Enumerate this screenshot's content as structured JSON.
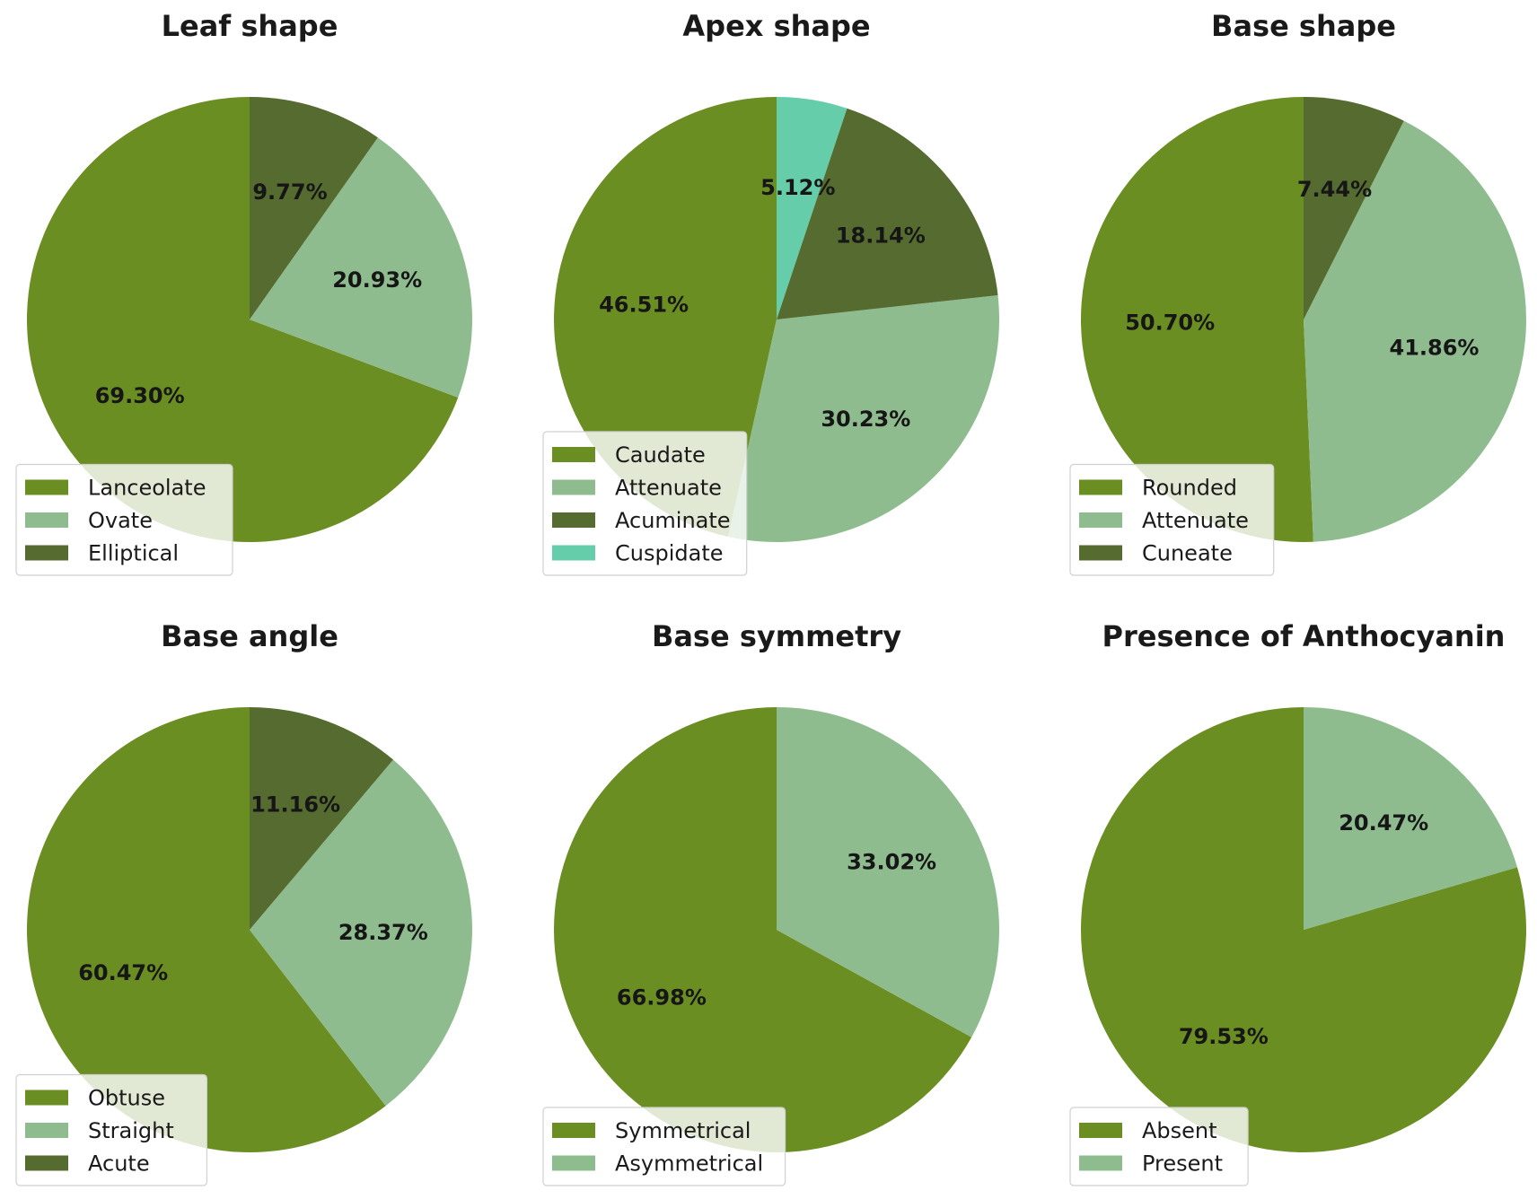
{
  "chart_data": [
    {
      "type": "pie",
      "title": "Leaf shape",
      "start_angle": "top",
      "direction": "counterclockwise",
      "legend_position": "lower-left",
      "slices": [
        {
          "label": "Lanceolate",
          "value": 69.3,
          "value_label": "69.30%",
          "color": "#6b8e23"
        },
        {
          "label": "Ovate",
          "value": 20.93,
          "value_label": "20.93%",
          "color": "#8fbc8f"
        },
        {
          "label": "Elliptical",
          "value": 9.77,
          "value_label": "9.77%",
          "color": "#556b2f"
        }
      ]
    },
    {
      "type": "pie",
      "title": "Apex shape",
      "start_angle": "top",
      "direction": "counterclockwise",
      "legend_position": "lower-left",
      "slices": [
        {
          "label": "Caudate",
          "value": 46.51,
          "value_label": "46.51%",
          "color": "#6b8e23"
        },
        {
          "label": "Attenuate",
          "value": 30.23,
          "value_label": "30.23%",
          "color": "#8fbc8f"
        },
        {
          "label": "Acuminate",
          "value": 18.14,
          "value_label": "18.14%",
          "color": "#556b2f"
        },
        {
          "label": "Cuspidate",
          "value": 5.12,
          "value_label": "5.12%",
          "color": "#66cdaa"
        }
      ]
    },
    {
      "type": "pie",
      "title": "Base shape",
      "start_angle": "top",
      "direction": "counterclockwise",
      "legend_position": "lower-left",
      "slices": [
        {
          "label": "Rounded",
          "value": 50.7,
          "value_label": "50.70%",
          "color": "#6b8e23"
        },
        {
          "label": "Attenuate",
          "value": 41.86,
          "value_label": "41.86%",
          "color": "#8fbc8f"
        },
        {
          "label": "Cuneate",
          "value": 7.44,
          "value_label": "7.44%",
          "color": "#556b2f"
        }
      ]
    },
    {
      "type": "pie",
      "title": "Base angle",
      "start_angle": "top",
      "direction": "counterclockwise",
      "legend_position": "lower-left",
      "slices": [
        {
          "label": "Obtuse",
          "value": 60.47,
          "value_label": "60.47%",
          "color": "#6b8e23"
        },
        {
          "label": "Straight",
          "value": 28.37,
          "value_label": "28.37%",
          "color": "#8fbc8f"
        },
        {
          "label": "Acute",
          "value": 11.16,
          "value_label": "11.16%",
          "color": "#556b2f"
        }
      ]
    },
    {
      "type": "pie",
      "title": "Base symmetry",
      "start_angle": "top",
      "direction": "counterclockwise",
      "legend_position": "lower-left",
      "slices": [
        {
          "label": "Symmetrical",
          "value": 66.98,
          "value_label": "66.98%",
          "color": "#6b8e23"
        },
        {
          "label": "Asymmetrical",
          "value": 33.02,
          "value_label": "33.02%",
          "color": "#8fbc8f"
        }
      ]
    },
    {
      "type": "pie",
      "title": "Presence of Anthocyanin",
      "start_angle": "top",
      "direction": "counterclockwise",
      "legend_position": "lower-left",
      "slices": [
        {
          "label": "Absent",
          "value": 79.53,
          "value_label": "79.53%",
          "color": "#6b8e23"
        },
        {
          "label": "Present",
          "value": 20.47,
          "value_label": "20.47%",
          "color": "#8fbc8f"
        }
      ]
    }
  ]
}
